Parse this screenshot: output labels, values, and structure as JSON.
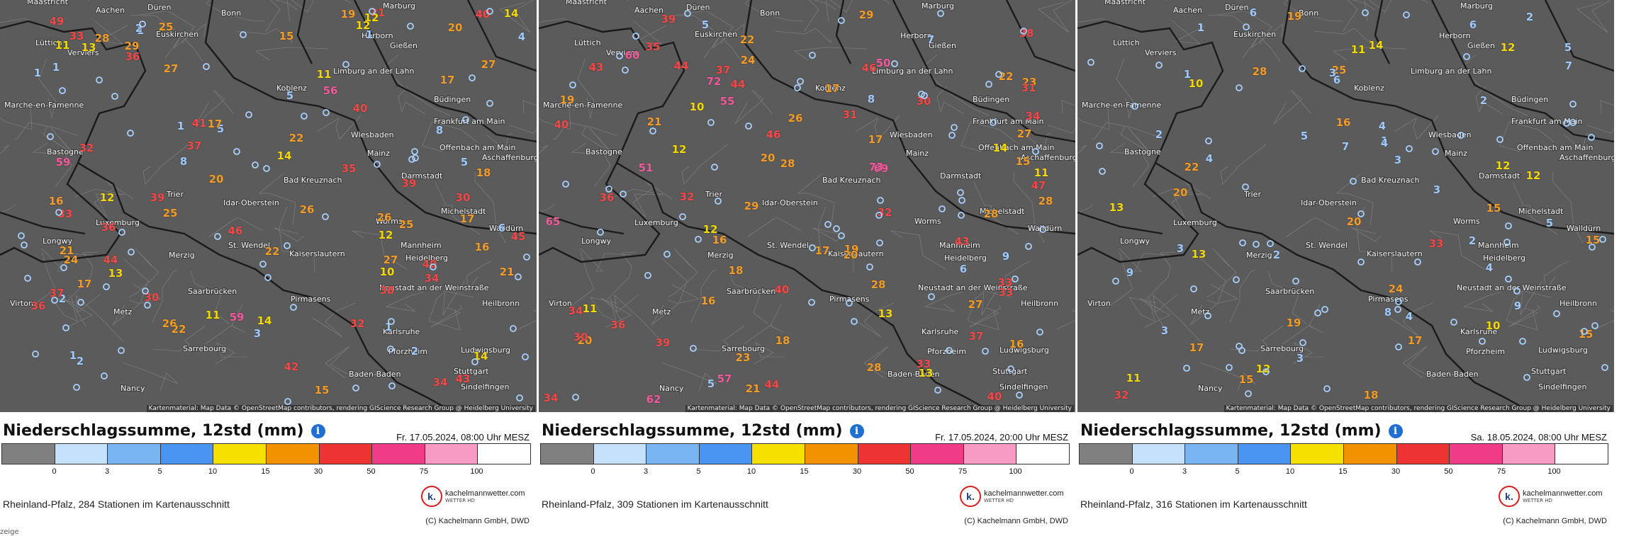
{
  "colors": {
    "scale": [
      "#808080",
      "#c6e1fb",
      "#7ab5f3",
      "#4a95f2",
      "#f6e000",
      "#f39200",
      "#ee3333",
      "#f03c88",
      "#f79ac4",
      "#ffffff"
    ],
    "text_by_bin": {
      "blue": "#9ec9ff",
      "yellow": "#f3d800",
      "orange": "#f39c28",
      "red": "#f24848",
      "pink": "#f25a9b"
    }
  },
  "legend_ticks": [
    "0",
    "3",
    "5",
    "10",
    "15",
    "30",
    "50",
    "75",
    "100"
  ],
  "attribution": "Kartenmaterial: Map Data © OpenStreetMap contributors, rendering GIScience Research Group @ Heidelberg University",
  "logo": {
    "name": "kachelmannwetter.com",
    "sub": "WETTER HD",
    "mark": "k."
  },
  "copyright": "(C) Kachelmann GmbH, DWD",
  "title": "Niederschlagssumme, 12std (mm)",
  "cities": [
    {
      "name": "Maastricht"
    },
    {
      "name": "Aachen"
    },
    {
      "name": "Düren"
    },
    {
      "name": "Bonn"
    },
    {
      "name": "Marburg"
    },
    {
      "name": "Euskirchen"
    },
    {
      "name": "Herborn"
    },
    {
      "name": "Gießen"
    },
    {
      "name": "Lüttich"
    },
    {
      "name": "Verviers"
    },
    {
      "name": "Limburg an der Lahn"
    },
    {
      "name": "Koblenz"
    },
    {
      "name": "Büdingen"
    },
    {
      "name": "Marche-en-Famenne"
    },
    {
      "name": "Frankfurt am Main"
    },
    {
      "name": "Wiesbaden"
    },
    {
      "name": "Offenbach am Main"
    },
    {
      "name": "Mainz"
    },
    {
      "name": "Aschaffenburg"
    },
    {
      "name": "Bastogne"
    },
    {
      "name": "Darmstadt"
    },
    {
      "name": "Bad Kreuznach"
    },
    {
      "name": "Trier"
    },
    {
      "name": "Idar-Oberstein"
    },
    {
      "name": "Luxemburg"
    },
    {
      "name": "Worms"
    },
    {
      "name": "Michelstadt"
    },
    {
      "name": "Walldürn"
    },
    {
      "name": "Longwy"
    },
    {
      "name": "Merzig"
    },
    {
      "name": "St. Wendel"
    },
    {
      "name": "Kaiserslautern"
    },
    {
      "name": "Mannheim"
    },
    {
      "name": "Heidelberg"
    },
    {
      "name": "Saarbrücken"
    },
    {
      "name": "Neustadt an der Weinstraße"
    },
    {
      "name": "Virton"
    },
    {
      "name": "Pirmasens"
    },
    {
      "name": "Metz"
    },
    {
      "name": "Heilbronn"
    },
    {
      "name": "Karlsruhe"
    },
    {
      "name": "Ludwigsburg"
    },
    {
      "name": "Pforzheim"
    },
    {
      "name": "Sarrebourg"
    },
    {
      "name": "Baden-Baden"
    },
    {
      "name": "Stuttgart"
    },
    {
      "name": "Sindelfingen"
    },
    {
      "name": "Nancy"
    }
  ],
  "panels": [
    {
      "datetime": "Fr. 17.05.2024, 08:00 Uhr MESZ",
      "stations": "Rheinland-Pfalz, 284 Stationen im Kartenausschnitt",
      "extra": "zeige",
      "values": [
        "12",
        "17",
        "1",
        "1",
        "5",
        "2",
        "2",
        "1",
        "1",
        "15",
        "1",
        "16",
        "11",
        "14",
        "11",
        "18",
        "22",
        "26",
        "17",
        "13",
        "14",
        "20",
        "8",
        "16",
        "19",
        "29",
        "27",
        "33",
        "36",
        "39",
        "42",
        "32",
        "37",
        "25",
        "30",
        "34",
        "10",
        "12",
        "14",
        "17",
        "27",
        "31",
        "43",
        "59",
        "40",
        "30",
        "36",
        "33",
        "35",
        "59",
        "45",
        "41",
        "40",
        "26",
        "38",
        "34",
        "40",
        "49",
        "36",
        "28",
        "25",
        "27",
        "22",
        "21",
        "15",
        "32",
        "46",
        "44",
        "39",
        "37",
        "56",
        "25",
        "20",
        "13",
        "14",
        "12",
        "24",
        "26",
        "22",
        "17",
        "21",
        "11",
        "12",
        "8",
        "5",
        "6",
        "2",
        "3",
        "4",
        "5",
        "1",
        "2",
        "1"
      ]
    },
    {
      "datetime": "Fr. 17.05.2024, 20:00 Uhr MESZ",
      "stations": "Rheinland-Pfalz, 309 Stationen im Kartenausschnitt",
      "extra": "",
      "values": [
        "28",
        "17",
        "18",
        "13",
        "16",
        "14",
        "22",
        "29",
        "20",
        "34",
        "36",
        "18",
        "16",
        "40",
        "43",
        "21",
        "15",
        "19",
        "11",
        "17",
        "51",
        "27",
        "37",
        "39",
        "46",
        "44",
        "40",
        "27",
        "34",
        "38",
        "44",
        "30",
        "32",
        "31",
        "33",
        "23",
        "29",
        "24",
        "20",
        "28",
        "19",
        "39",
        "50",
        "65",
        "69",
        "72",
        "73",
        "60",
        "62",
        "44",
        "36",
        "28",
        "35",
        "37",
        "34",
        "43",
        "32",
        "28",
        "21",
        "16",
        "17",
        "12",
        "23",
        "26",
        "33",
        "30",
        "28",
        "40",
        "46",
        "55",
        "57",
        "47",
        "31",
        "33",
        "22",
        "13",
        "20",
        "12",
        "11",
        "10",
        "9",
        "5",
        "6",
        "8",
        "7",
        "5"
      ]
    },
    {
      "datetime": "Sa. 18.05.2024, 08:00 Uhr MESZ",
      "stations": "Rheinland-Pfalz, 316 Stationen im Kartenausschnitt",
      "extra": "",
      "values": [
        "22",
        "17",
        "10",
        "13",
        "10",
        "15",
        "33",
        "11",
        "12",
        "19",
        "20",
        "17",
        "14",
        "12",
        "15",
        "25",
        "28",
        "24",
        "20",
        "32",
        "19",
        "15",
        "12",
        "11",
        "13",
        "16",
        "15",
        "18",
        "12",
        "9",
        "6",
        "4",
        "3",
        "2",
        "1",
        "5",
        "7",
        "8",
        "3",
        "4",
        "2",
        "6",
        "5",
        "4",
        "3",
        "2",
        "1",
        "1",
        "2",
        "3",
        "4",
        "5",
        "6",
        "7",
        "3",
        "2",
        "4",
        "9",
        "3"
      ]
    }
  ]
}
